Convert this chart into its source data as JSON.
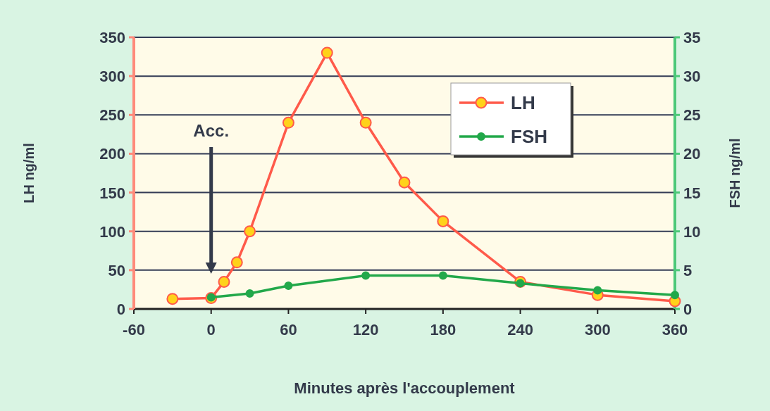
{
  "chart_data": {
    "type": "line",
    "xlabel": "Minutes après l'accouplement",
    "ylabel": "LH ng/ml",
    "y2label": "FSH ng/ml",
    "xlim": [
      -60,
      360
    ],
    "xticks": [
      -60,
      0,
      60,
      120,
      180,
      240,
      300,
      360
    ],
    "ylim": [
      0,
      350
    ],
    "yticks": [
      0,
      50,
      100,
      150,
      200,
      250,
      300,
      350
    ],
    "y2lim": [
      0,
      35
    ],
    "y2ticks": [
      0,
      5,
      10,
      15,
      20,
      25,
      30,
      35
    ],
    "grid": "y",
    "legend": "top right",
    "marker": "circle",
    "line_style": "solid",
    "annotations": [
      "Acc."
    ],
    "series": [
      {
        "name": "LH",
        "color": "#ff5a4a",
        "x": [
          -30,
          0,
          10,
          20,
          30,
          60,
          90,
          120,
          150,
          180,
          240,
          300,
          360
        ],
        "values": [
          13,
          14,
          35,
          60,
          100,
          240,
          330,
          240,
          163,
          113,
          35,
          18,
          10
        ]
      },
      {
        "name": "FSH",
        "color": "#22a84a",
        "axis": "y2",
        "x": [
          0,
          30,
          60,
          120,
          180,
          240,
          300,
          360
        ],
        "values": [
          1.5,
          2,
          3,
          4.3,
          4.3,
          3.3,
          2.4,
          1.8
        ]
      }
    ]
  }
}
